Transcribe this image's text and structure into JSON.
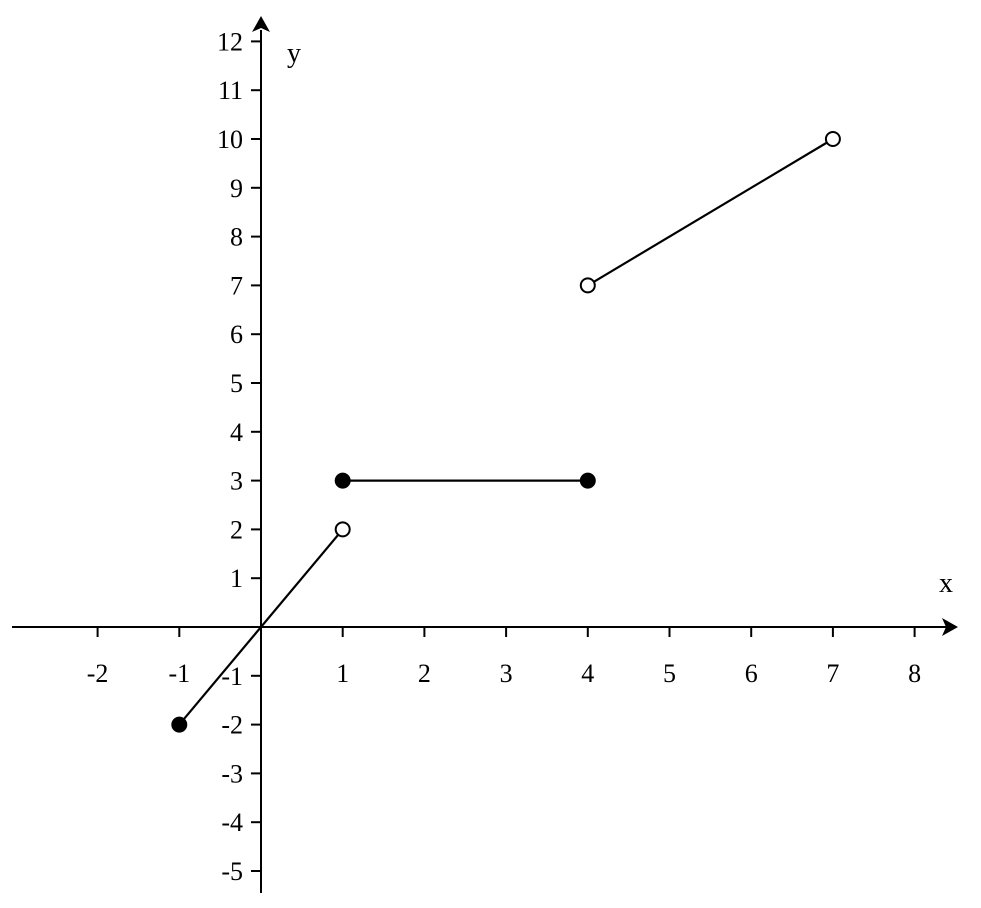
{
  "chart_data": {
    "type": "line",
    "title": "",
    "xlabel": "x",
    "ylabel": "y",
    "xlim": [
      -3,
      8.5
    ],
    "ylim": [
      -5.5,
      12.5
    ],
    "grid": false,
    "x_ticks": [
      -2,
      -1,
      1,
      2,
      3,
      4,
      5,
      6,
      7,
      8
    ],
    "y_ticks": [
      -5,
      -4,
      -3,
      -2,
      -1,
      1,
      2,
      3,
      4,
      5,
      6,
      7,
      8,
      9,
      10,
      11,
      12
    ],
    "x_tick_labels": [
      "-2",
      "-1",
      "1",
      "2",
      "3",
      "4",
      "5",
      "6",
      "7",
      "8"
    ],
    "y_tick_labels": [
      "-5",
      "-4",
      "-3",
      "-2",
      "-1",
      "1",
      "2",
      "3",
      "4",
      "5",
      "6",
      "7",
      "8",
      "9",
      "10",
      "11",
      "12"
    ],
    "series": [
      {
        "points": [
          [
            -1,
            -2
          ],
          [
            1,
            2
          ]
        ],
        "endpoints": [
          "closed",
          "open"
        ]
      },
      {
        "points": [
          [
            1,
            3
          ],
          [
            4,
            3
          ]
        ],
        "endpoints": [
          "closed",
          "closed"
        ]
      },
      {
        "points": [
          [
            4,
            7
          ],
          [
            7,
            10
          ]
        ],
        "endpoints": [
          "open",
          "open"
        ]
      }
    ]
  }
}
